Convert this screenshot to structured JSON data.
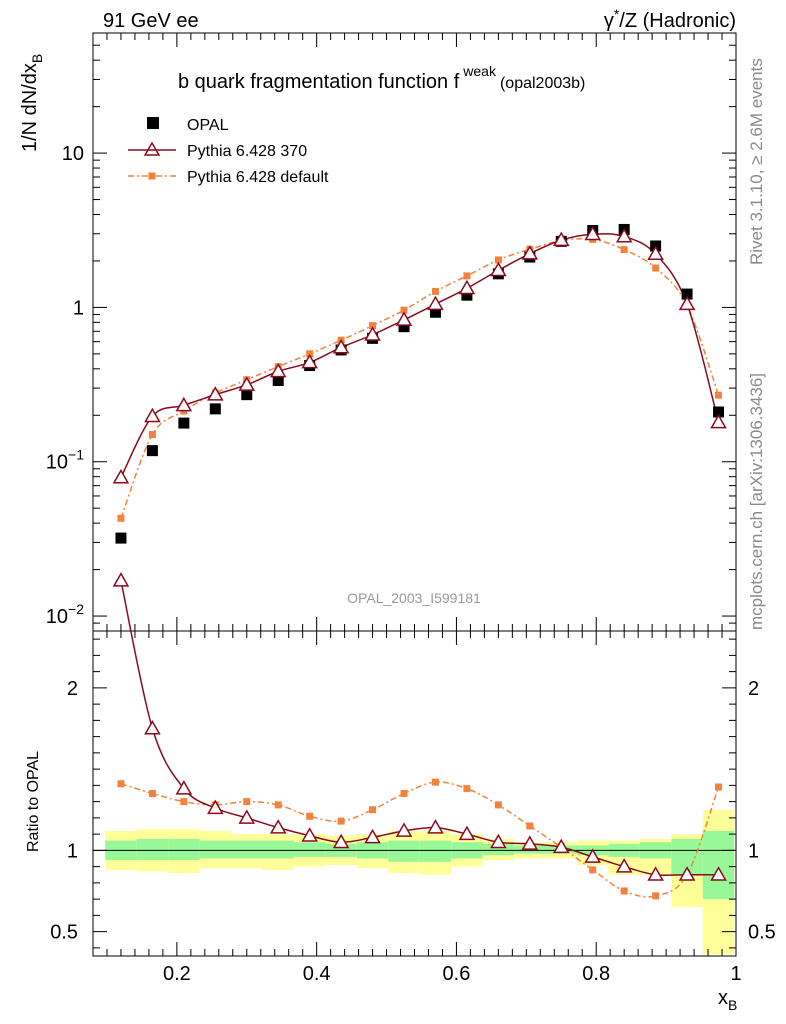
{
  "header": {
    "left": "91 GeV ee",
    "right_prefix": "γ",
    "right_sup": "*",
    "right_suffix": "/Z (Hadronic)"
  },
  "side": {
    "rivet": "Rivet 3.1.10, ≥ 2.6M events",
    "mcplots": "mcplots.cern.ch [arXiv:1306.3436]"
  },
  "watermark": "OPAL_2003_I599181",
  "colors": {
    "opal": "#000000",
    "pythia370": "#8b0a1e",
    "pythia_default": "#f4823c",
    "band_inner": "#98f898",
    "band_outer": "#ffff99"
  },
  "chart_data": [
    {
      "type": "scatter",
      "title": "b quark fragmentation function f",
      "title_sup": "weak",
      "title_suffix": "(opal2003b)",
      "xlabel": "x",
      "xlabel_sub": "B",
      "ylabel": "1/N dN/dx",
      "ylabel_sub": "B",
      "ylog": true,
      "xlim": [
        0.08,
        1.0
      ],
      "ylim": [
        0.008,
        60
      ],
      "y_ticks": [
        {
          "value": 0.01,
          "base": "10",
          "exp": "−2"
        },
        {
          "value": 0.1,
          "base": "10",
          "exp": "−1"
        },
        {
          "value": 1,
          "base": "1",
          "exp": ""
        },
        {
          "value": 10,
          "base": "10",
          "exp": ""
        }
      ],
      "legend_position": "top-left",
      "x": [
        0.12,
        0.165,
        0.21,
        0.255,
        0.3,
        0.345,
        0.39,
        0.435,
        0.48,
        0.525,
        0.57,
        0.615,
        0.66,
        0.705,
        0.75,
        0.795,
        0.84,
        0.885,
        0.93,
        0.975
      ],
      "series": [
        {
          "name": "OPAL",
          "marker": "square",
          "values": [
            0.032,
            0.118,
            0.178,
            0.22,
            0.272,
            0.336,
            0.42,
            0.53,
            0.63,
            0.75,
            0.93,
            1.2,
            1.65,
            2.12,
            2.68,
            3.15,
            3.2,
            2.5,
            1.22,
            0.21
          ]
        },
        {
          "name": "Pythia 6.428 370",
          "marker": "triangle",
          "values": [
            0.079,
            0.197,
            0.232,
            0.272,
            0.315,
            0.385,
            0.44,
            0.55,
            0.665,
            0.83,
            1.05,
            1.33,
            1.74,
            2.23,
            2.73,
            2.98,
            2.88,
            2.22,
            1.05,
            0.18
          ]
        },
        {
          "name": "Pythia 6.428 default",
          "marker": "small-square",
          "dashed": true,
          "values": [
            0.043,
            0.15,
            0.213,
            0.278,
            0.34,
            0.413,
            0.5,
            0.613,
            0.762,
            0.96,
            1.27,
            1.6,
            2.03,
            2.38,
            2.71,
            2.76,
            2.37,
            1.8,
            1.03,
            0.27
          ]
        }
      ]
    },
    {
      "type": "line",
      "ylabel": "Ratio to OPAL",
      "xlim": [
        0.08,
        1.0
      ],
      "ylim": [
        0.35,
        2.35
      ],
      "x_ticks": [
        0.2,
        0.4,
        0.6,
        0.8,
        1
      ],
      "x_tick_labels": [
        "0.2",
        "0.4",
        "0.6",
        "0.8",
        "1"
      ],
      "y_ticks": [
        0.5,
        1,
        2
      ],
      "y_tick_labels": [
        "0.5",
        "1",
        "2"
      ],
      "x": [
        0.12,
        0.165,
        0.21,
        0.255,
        0.3,
        0.345,
        0.39,
        0.435,
        0.48,
        0.525,
        0.57,
        0.615,
        0.66,
        0.705,
        0.75,
        0.795,
        0.84,
        0.885,
        0.93,
        0.975
      ],
      "bin_edges": [
        0.0975,
        0.1425,
        0.1875,
        0.2325,
        0.2775,
        0.3225,
        0.3675,
        0.4125,
        0.4575,
        0.5025,
        0.5475,
        0.5925,
        0.6375,
        0.6825,
        0.7275,
        0.7725,
        0.8175,
        0.8625,
        0.9075,
        0.9525,
        0.9975
      ],
      "band_outer": {
        "low": [
          0.88,
          0.87,
          0.86,
          0.89,
          0.89,
          0.88,
          0.9,
          0.91,
          0.89,
          0.86,
          0.85,
          0.9,
          0.94,
          0.95,
          0.95,
          0.91,
          0.85,
          0.85,
          0.65,
          0.36
        ],
        "high": [
          1.12,
          1.13,
          1.13,
          1.12,
          1.1,
          1.1,
          1.1,
          1.09,
          1.1,
          1.12,
          1.12,
          1.1,
          1.07,
          1.05,
          1.05,
          1.06,
          1.06,
          1.07,
          1.1,
          1.25
        ]
      },
      "band_inner": {
        "low": [
          0.94,
          0.94,
          0.94,
          0.95,
          0.95,
          0.95,
          0.96,
          0.96,
          0.95,
          0.93,
          0.93,
          0.95,
          0.97,
          0.98,
          0.98,
          0.97,
          0.96,
          0.95,
          0.85,
          0.7
        ],
        "high": [
          1.06,
          1.07,
          1.07,
          1.06,
          1.06,
          1.06,
          1.05,
          1.04,
          1.05,
          1.06,
          1.06,
          1.05,
          1.04,
          1.03,
          1.03,
          1.03,
          1.04,
          1.05,
          1.07,
          1.12
        ]
      },
      "series": [
        {
          "name": "Pythia 6.428 370",
          "values": [
            2.66,
            1.75,
            1.38,
            1.26,
            1.2,
            1.14,
            1.09,
            1.05,
            1.08,
            1.12,
            1.14,
            1.1,
            1.05,
            1.04,
            1.02,
            0.96,
            0.9,
            0.85,
            0.85,
            0.85
          ]
        },
        {
          "name": "Pythia 6.428 default",
          "values": [
            1.41,
            1.35,
            1.3,
            1.28,
            1.3,
            1.28,
            1.21,
            1.18,
            1.25,
            1.35,
            1.42,
            1.38,
            1.28,
            1.15,
            1.02,
            0.88,
            0.75,
            0.72,
            0.85,
            1.39
          ]
        }
      ]
    }
  ]
}
